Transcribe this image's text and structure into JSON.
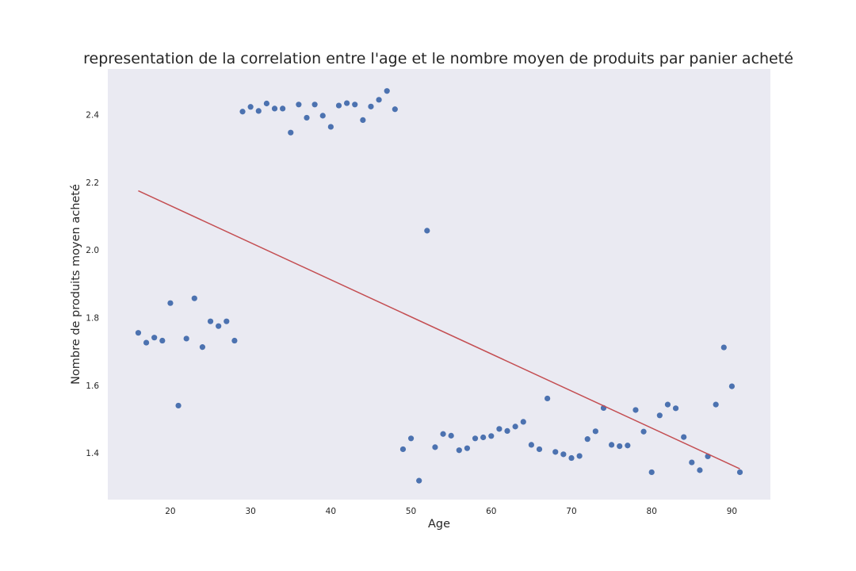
{
  "chart_data": {
    "type": "scatter",
    "title": "representation de la correlation entre l'age et le nombre moyen de produits par panier acheté",
    "xlabel": "Age",
    "ylabel": "Nombre de produits moyen acheté",
    "xlim": [
      12.2,
      94.8
    ],
    "ylim": [
      1.262,
      2.535
    ],
    "xticks": [
      20,
      30,
      40,
      50,
      60,
      70,
      80,
      90
    ],
    "yticks": [
      1.4,
      1.6,
      1.8,
      2.0,
      2.2,
      2.4
    ],
    "ytick_labels": [
      "1.4",
      "1.6",
      "1.8",
      "2.0",
      "2.2",
      "2.4"
    ],
    "grid": false,
    "background": "#eaeaf2",
    "point_color": "#4c72b0",
    "line_color": "#c44e52",
    "series": [
      {
        "x": [
          16,
          17,
          18,
          19,
          20,
          21,
          22,
          23,
          24,
          25,
          26,
          27,
          28,
          29,
          30,
          31,
          32,
          33,
          34,
          35,
          36,
          37,
          38,
          39,
          40,
          41,
          42,
          43,
          44,
          45,
          46,
          47,
          48,
          49,
          50,
          51,
          52,
          53,
          54,
          55,
          56,
          57,
          58,
          59,
          60,
          61,
          62,
          63,
          64,
          65,
          66,
          67,
          68,
          69,
          70,
          71,
          72,
          73,
          74,
          75,
          76,
          77,
          78,
          79,
          80,
          81,
          82,
          83,
          84,
          85,
          86,
          87,
          88,
          89,
          90,
          91
        ],
        "y": [
          1.755,
          1.726,
          1.741,
          1.732,
          1.843,
          1.54,
          1.738,
          1.857,
          1.713,
          1.789,
          1.775,
          1.789,
          1.732,
          2.409,
          2.423,
          2.411,
          2.433,
          2.418,
          2.418,
          2.347,
          2.43,
          2.391,
          2.43,
          2.397,
          2.364,
          2.427,
          2.434,
          2.43,
          2.384,
          2.424,
          2.444,
          2.47,
          2.416,
          1.411,
          1.443,
          1.318,
          2.057,
          1.417,
          1.456,
          1.451,
          1.408,
          1.414,
          1.443,
          1.446,
          1.45,
          1.471,
          1.465,
          1.478,
          1.492,
          1.424,
          1.411,
          1.561,
          1.403,
          1.396,
          1.385,
          1.391,
          1.441,
          1.464,
          1.533,
          1.424,
          1.42,
          1.422,
          1.527,
          1.463,
          1.343,
          1.511,
          1.543,
          1.532,
          1.447,
          1.372,
          1.349,
          1.39,
          1.543,
          1.712,
          1.597,
          1.343
        ]
      }
    ],
    "trendline": {
      "x": [
        16,
        91
      ],
      "y": [
        2.175,
        1.353
      ]
    }
  }
}
